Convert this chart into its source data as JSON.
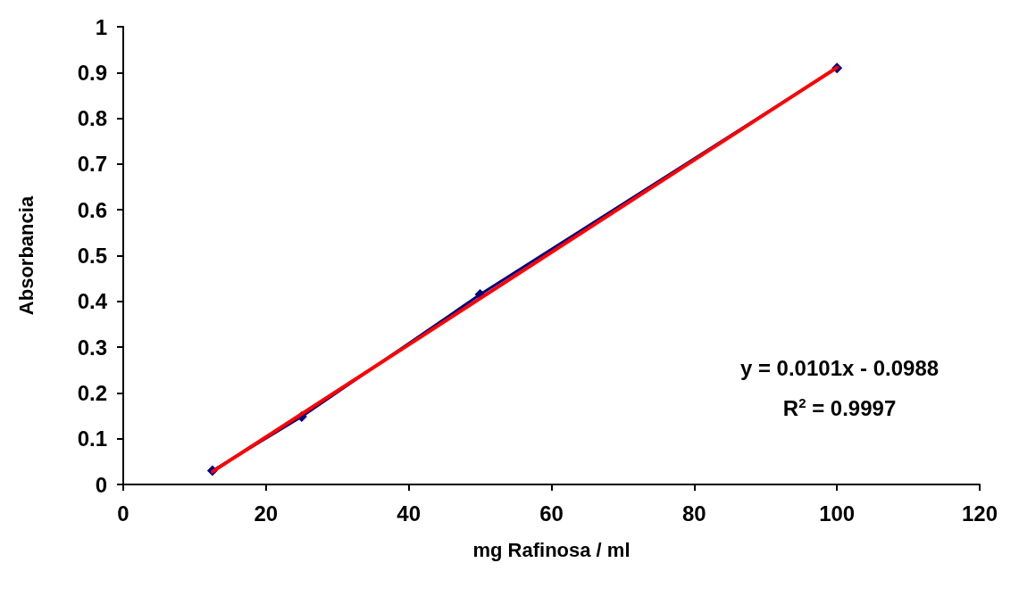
{
  "chart_data": {
    "type": "line",
    "xlabel": "mg Rafinosa / ml",
    "ylabel": "Absorbancia",
    "xlim": [
      0,
      120
    ],
    "xticks": [
      0,
      20,
      40,
      60,
      80,
      100,
      120
    ],
    "ylim": [
      0,
      1
    ],
    "yticks": [
      0,
      0.1,
      0.2,
      0.3,
      0.4,
      0.5,
      0.6,
      0.7,
      0.8,
      0.9,
      1
    ],
    "grid": false,
    "marker": "diamond",
    "line_style": "solid",
    "series": [
      {
        "color": "#000080",
        "x": [
          12.5,
          25,
          50,
          100
        ],
        "values": [
          0.03,
          0.148,
          0.415,
          0.91
        ]
      },
      {
        "type": "line",
        "marker": "none",
        "color": "#ff0000",
        "x": [
          12.5,
          100
        ],
        "values": [
          0.028,
          0.911
        ]
      }
    ],
    "annotations": [
      "y = 0.0101x - 0.0988",
      "R$^{2}$ = 0.9997"
    ]
  }
}
